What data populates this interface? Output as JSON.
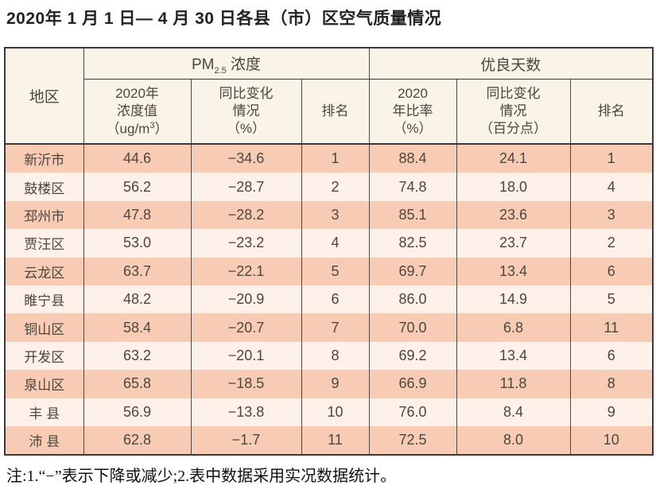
{
  "title": "2020年 1 月 1 日— 4 月 30 日各县（市）区空气质量情况",
  "note": "注:1.“−”表示下降或减少;2.表中数据采用实况数据统计。",
  "colors": {
    "row_stripe_dark": "#f8ccb4",
    "row_stripe_light": "#fdf1ea",
    "header_bg": "#faf3e7",
    "border": "#3a3a3a",
    "table_text": "#4c463f",
    "title_text": "#222222"
  },
  "table": {
    "region_header": "地区",
    "group_pm25": {
      "prefix": "PM",
      "sub": "2.5",
      "suffix": " 浓度"
    },
    "group_good_days": "优良天数",
    "sub_headers": {
      "pm_value": {
        "line1": "2020年",
        "line2": "浓度值",
        "line3_pre": "（ug/m",
        "line3_sup": "3",
        "line3_post": "）"
      },
      "pm_change": {
        "line1": "同比变化",
        "line2": "情况",
        "line3": "（%）"
      },
      "pm_rank": "排名",
      "ratio": {
        "line1": "2020",
        "line2": "年比率",
        "line3": "（%）"
      },
      "ratio_change": {
        "line1": "同比变化",
        "line2": "情况",
        "line3": "（百分点）"
      },
      "ratio_rank": "排名"
    },
    "rows": [
      [
        "新沂市",
        "44.6",
        "−34.6",
        "1",
        "88.4",
        "24.1",
        "1"
      ],
      [
        "鼓楼区",
        "56.2",
        "−28.7",
        "2",
        "74.8",
        "18.0",
        "4"
      ],
      [
        "邳州市",
        "47.8",
        "−28.2",
        "3",
        "85.1",
        "23.6",
        "3"
      ],
      [
        "贾汪区",
        "53.0",
        "−23.2",
        "4",
        "82.5",
        "23.7",
        "2"
      ],
      [
        "云龙区",
        "63.7",
        "−22.1",
        "5",
        "69.7",
        "13.4",
        "6"
      ],
      [
        "睢宁县",
        "48.2",
        "−20.9",
        "6",
        "86.0",
        "14.9",
        "5"
      ],
      [
        "铜山区",
        "58.4",
        "−20.7",
        "7",
        "70.0",
        "6.8",
        "11"
      ],
      [
        "开发区",
        "63.2",
        "−20.1",
        "8",
        "69.2",
        "13.4",
        "6"
      ],
      [
        "泉山区",
        "65.8",
        "−18.5",
        "9",
        "66.9",
        "11.8",
        "8"
      ],
      [
        "丰 县",
        "56.9",
        "−13.8",
        "10",
        "76.0",
        "8.4",
        "9"
      ],
      [
        "沛 县",
        "62.8",
        "−1.7",
        "11",
        "72.5",
        "8.0",
        "10"
      ]
    ]
  }
}
